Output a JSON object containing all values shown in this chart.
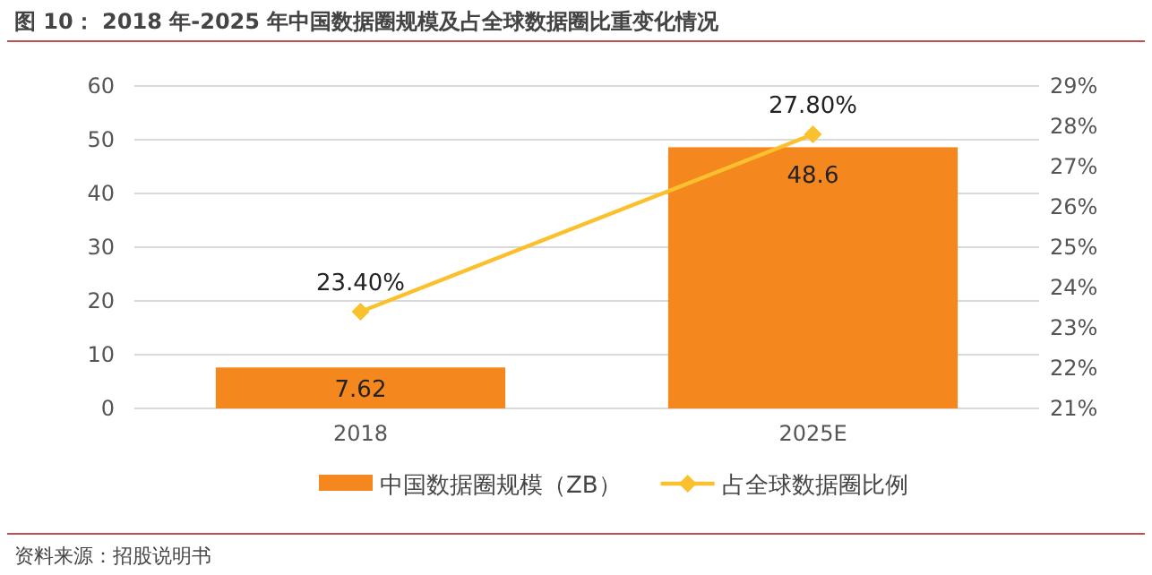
{
  "chart_data": {
    "type": "bar",
    "title": "图 10：  2018 年-2025 年中国数据圈规模及占全球数据圈比重变化情况",
    "categories": [
      "2018",
      "2025E"
    ],
    "series": [
      {
        "name": "中国数据圈规模（ZB）",
        "color": "#f5871f",
        "values": [
          7.62,
          48.6
        ],
        "value_labels": [
          "7.62",
          "48.6"
        ]
      },
      {
        "name": "占全球数据圈比例",
        "type": "line",
        "axis": "y2",
        "color": "#fbc02d",
        "marker": "diamond",
        "values": [
          23.4,
          27.8
        ],
        "value_labels": [
          "23.40%",
          "27.80%"
        ]
      }
    ],
    "ylim": [
      0,
      60
    ],
    "yticks": [
      0,
      10,
      20,
      30,
      40,
      50,
      60
    ],
    "y2lim": [
      21,
      29
    ],
    "y2ticks": [
      {
        "value": 21,
        "label": "21%"
      },
      {
        "value": 22,
        "label": "22%"
      },
      {
        "value": 23,
        "label": "23%"
      },
      {
        "value": 24,
        "label": "24%"
      },
      {
        "value": 25,
        "label": "25%"
      },
      {
        "value": 26,
        "label": "26%"
      },
      {
        "value": 27,
        "label": "27%"
      },
      {
        "value": 28,
        "label": "28%"
      },
      {
        "value": 29,
        "label": "29%"
      }
    ],
    "grid": "y",
    "legend": "bottom",
    "annotations": [
      "资料来源：招股说明书"
    ]
  }
}
